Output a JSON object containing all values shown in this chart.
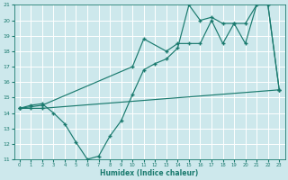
{
  "title": "",
  "xlabel": "Humidex (Indice chaleur)",
  "bg_color": "#cde8ec",
  "grid_color": "#ffffff",
  "line_color": "#1a7a6e",
  "xlim": [
    -0.5,
    23.5
  ],
  "ylim": [
    11,
    21
  ],
  "yticks": [
    11,
    12,
    13,
    14,
    15,
    16,
    17,
    18,
    19,
    20,
    21
  ],
  "xticks": [
    0,
    1,
    2,
    3,
    4,
    5,
    6,
    7,
    8,
    9,
    10,
    11,
    12,
    13,
    14,
    15,
    16,
    17,
    18,
    19,
    20,
    21,
    22,
    23
  ],
  "line1_x": [
    0,
    1,
    2,
    23
  ],
  "line1_y": [
    14.3,
    14.3,
    14.3,
    15.5
  ],
  "line2_x": [
    0,
    1,
    2,
    3,
    4,
    5,
    6,
    7,
    8,
    9,
    10,
    11,
    12,
    13,
    14,
    15,
    16,
    17,
    18,
    19,
    20,
    21,
    22,
    23
  ],
  "line2_y": [
    14.3,
    14.5,
    14.6,
    14.0,
    13.3,
    12.1,
    11.0,
    11.2,
    12.5,
    13.5,
    15.2,
    16.8,
    17.2,
    17.5,
    18.2,
    21.0,
    20.0,
    20.2,
    19.8,
    19.8,
    19.8,
    21.0,
    21.0,
    15.5
  ],
  "line3_x": [
    0,
    2,
    10,
    11,
    13,
    14,
    15,
    16,
    17,
    18,
    19,
    20,
    21,
    22,
    23
  ],
  "line3_y": [
    14.3,
    14.5,
    17.0,
    18.8,
    18.0,
    18.5,
    18.5,
    18.5,
    20.0,
    18.5,
    19.8,
    18.5,
    21.0,
    21.0,
    15.5
  ]
}
